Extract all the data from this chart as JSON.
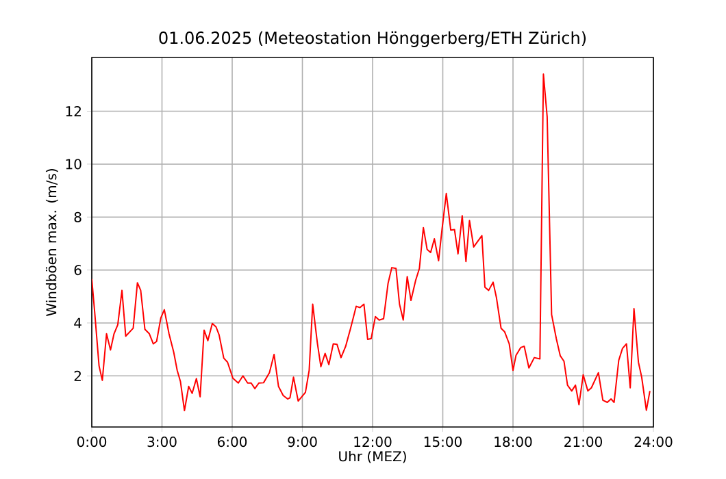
{
  "chart_data": {
    "type": "line",
    "title": "01.06.2025  (Meteostation Hönggerberg/ETH Zürich)",
    "xlabel": "Uhr (MEZ)",
    "ylabel": "Windböen max. (m/s)",
    "x": [
      0,
      0.12,
      0.31,
      0.45,
      0.63,
      0.8,
      0.95,
      1.11,
      1.29,
      1.45,
      1.77,
      1.95,
      2.09,
      2.27,
      2.46,
      2.63,
      2.77,
      2.95,
      3.1,
      3.3,
      3.5,
      3.65,
      3.79,
      3.96,
      4.14,
      4.29,
      4.47,
      4.63,
      4.8,
      4.96,
      5.15,
      5.31,
      5.44,
      5.64,
      5.8,
      6.03,
      6.26,
      6.46,
      6.66,
      6.81,
      6.97,
      7.14,
      7.34,
      7.59,
      7.79,
      7.98,
      8.18,
      8.37,
      8.47,
      8.62,
      8.82,
      9.13,
      9.29,
      9.44,
      9.64,
      9.79,
      9.97,
      10.13,
      10.32,
      10.48,
      10.65,
      10.85,
      11.06,
      11.3,
      11.46,
      11.63,
      11.79,
      11.94,
      12.12,
      12.28,
      12.47,
      12.66,
      12.82,
      13.0,
      13.15,
      13.31,
      13.48,
      13.64,
      13.84,
      14.0,
      14.17,
      14.33,
      14.48,
      14.64,
      14.82,
      14.97,
      15.15,
      15.34,
      15.5,
      15.65,
      15.83,
      15.99,
      16.14,
      16.32,
      16.67,
      16.8,
      16.96,
      17.15,
      17.29,
      17.49,
      17.64,
      17.84,
      18.0,
      18.13,
      18.33,
      18.48,
      18.68,
      18.91,
      19.15,
      19.3,
      19.46,
      19.65,
      19.85,
      20.02,
      20.18,
      20.33,
      20.51,
      20.67,
      20.82,
      21.0,
      21.2,
      21.35,
      21.65,
      21.84,
      22.03,
      22.19,
      22.32,
      22.52,
      22.68,
      22.85,
      23.01,
      23.17,
      23.36,
      23.5,
      23.7,
      23.85
    ],
    "series": [
      {
        "color": "#ff0000",
        "values": [
          5.66,
          4.45,
          2.38,
          1.83,
          3.59,
          2.98,
          3.59,
          3.93,
          5.23,
          3.5,
          3.8,
          5.52,
          5.23,
          3.76,
          3.59,
          3.21,
          3.3,
          4.19,
          4.5,
          3.59,
          2.9,
          2.21,
          1.78,
          0.69,
          1.6,
          1.34,
          1.9,
          1.21,
          3.73,
          3.33,
          3.98,
          3.85,
          3.55,
          2.67,
          2.52,
          1.91,
          1.73,
          2.0,
          1.73,
          1.73,
          1.52,
          1.73,
          1.74,
          2.12,
          2.81,
          1.6,
          1.26,
          1.13,
          1.17,
          1.95,
          1.05,
          1.38,
          2.21,
          4.71,
          3.24,
          2.35,
          2.85,
          2.43,
          3.21,
          3.19,
          2.69,
          3.12,
          3.8,
          4.63,
          4.58,
          4.71,
          3.38,
          3.41,
          4.24,
          4.11,
          4.16,
          5.49,
          6.09,
          6.06,
          4.71,
          4.11,
          5.75,
          4.85,
          5.61,
          6.06,
          7.6,
          6.78,
          6.66,
          7.18,
          6.35,
          7.56,
          8.89,
          7.51,
          7.53,
          6.61,
          8.05,
          6.32,
          7.87,
          6.87,
          7.3,
          5.35,
          5.23,
          5.54,
          4.97,
          3.8,
          3.67,
          3.21,
          2.21,
          2.78,
          3.07,
          3.12,
          2.3,
          2.69,
          2.64,
          13.4,
          11.79,
          4.32,
          3.41,
          2.76,
          2.55,
          1.65,
          1.43,
          1.65,
          0.91,
          2.04,
          1.43,
          1.55,
          2.12,
          1.08,
          1.0,
          1.13,
          1.0,
          2.59,
          3.04,
          3.21,
          1.55,
          4.54,
          2.52,
          1.95,
          0.7,
          1.43
        ]
      }
    ],
    "xlim": [
      0,
      24
    ],
    "ylim": [
      0.07,
      14.03
    ],
    "xticks": [
      {
        "value": 0,
        "label": "0:00"
      },
      {
        "value": 3,
        "label": "3:00"
      },
      {
        "value": 6,
        "label": "6:00"
      },
      {
        "value": 9,
        "label": "9:00"
      },
      {
        "value": 12,
        "label": "12:00"
      },
      {
        "value": 15,
        "label": "15:00"
      },
      {
        "value": 18,
        "label": "18:00"
      },
      {
        "value": 21,
        "label": "21:00"
      },
      {
        "value": 24,
        "label": "24:00"
      }
    ],
    "yticks": [
      2,
      4,
      6,
      8,
      10,
      12
    ],
    "grid": true,
    "marker": "none",
    "line_style": "solid"
  }
}
